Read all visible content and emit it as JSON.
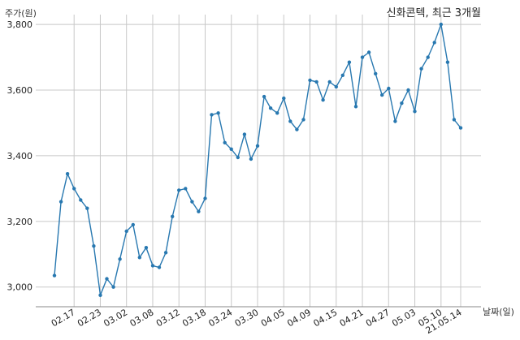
{
  "chart_data": {
    "type": "line",
    "title": "신화콘텍, 최근 3개월",
    "ylabel": "주가(원)",
    "xlabel": "날짜(일)",
    "ylim": [
      2940,
      3830
    ],
    "yticks": [
      3000,
      3200,
      3400,
      3600,
      3800
    ],
    "ytick_labels": [
      "3,000",
      "3,200",
      "3,400",
      "3,600",
      "3,800"
    ],
    "xtick_labels": [
      "02.17",
      "02.23",
      "03.02",
      "03.08",
      "03.12",
      "03.18",
      "03.24",
      "03.30",
      "04.05",
      "04.09",
      "04.15",
      "04.21",
      "04.27",
      "05.03",
      "05.10",
      "21.05.14"
    ],
    "xtick_indices": [
      3,
      7,
      11,
      15,
      19,
      23,
      27,
      31,
      35,
      39,
      43,
      47,
      51,
      55,
      59,
      62
    ],
    "grid": true,
    "color": "#2878b0",
    "series": [
      {
        "values": [
          3035,
          3260,
          3345,
          3300,
          3265,
          3240,
          3125,
          2975,
          3025,
          3000,
          3085,
          3170,
          3190,
          3090,
          3120,
          3065,
          3060,
          3105,
          3215,
          3295,
          3300,
          3260,
          3230,
          3270,
          3525,
          3530,
          3440,
          3420,
          3395,
          3465,
          3390,
          3430,
          3580,
          3545,
          3530,
          3575,
          3505,
          3480,
          3510,
          3630,
          3625,
          3570,
          3625,
          3610,
          3645,
          3685,
          3550,
          3700,
          3715,
          3650,
          3585,
          3605,
          3505,
          3560,
          3600,
          3535,
          3665,
          3700,
          3745,
          3800,
          3685,
          3510,
          3485
        ]
      }
    ]
  }
}
